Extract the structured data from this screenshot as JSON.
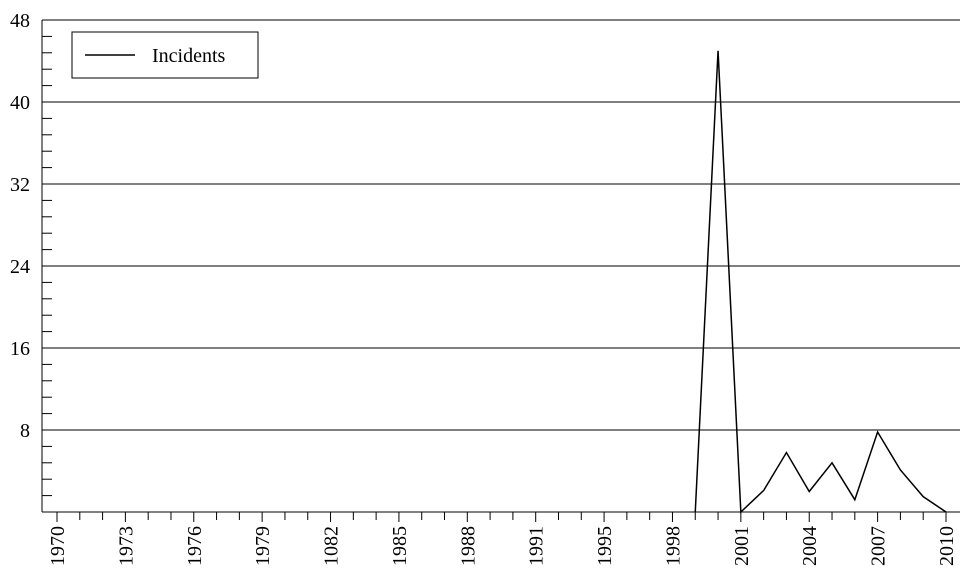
{
  "chart_data": {
    "type": "line",
    "x": [
      28,
      29,
      30,
      31,
      32,
      33,
      34,
      35,
      36,
      37,
      38,
      39
    ],
    "series": [
      {
        "name": "Incidents",
        "color": "#000000",
        "values": [
          0,
          45,
          0,
          2.1,
          5.8,
          2.0,
          4.8,
          1.2,
          7.8,
          4.1,
          1.5,
          0
        ]
      }
    ],
    "xlim": [
      0,
      39
    ],
    "xticks": [
      {
        "value": 0,
        "label": "1970"
      },
      {
        "value": 3,
        "label": "1973"
      },
      {
        "value": 6,
        "label": "1976"
      },
      {
        "value": 9,
        "label": "1979"
      },
      {
        "value": 12,
        "label": "1082"
      },
      {
        "value": 15,
        "label": "1985"
      },
      {
        "value": 18,
        "label": "1988"
      },
      {
        "value": 21,
        "label": "1991"
      },
      {
        "value": 24,
        "label": "1995"
      },
      {
        "value": 27,
        "label": "1998"
      },
      {
        "value": 30,
        "label": "2001"
      },
      {
        "value": 33,
        "label": "2004"
      },
      {
        "value": 36,
        "label": "2007"
      },
      {
        "value": 39,
        "label": "2010"
      }
    ],
    "xminorticks": [
      1,
      2,
      4,
      5,
      7,
      8,
      10,
      11,
      13,
      14,
      16,
      17,
      19,
      20,
      22,
      23,
      25,
      26,
      28,
      29,
      31,
      32,
      34,
      35,
      37,
      38
    ],
    "ylim": [
      0,
      48
    ],
    "yticks": [
      8,
      16,
      24,
      32,
      40,
      48
    ],
    "yminorticks": [
      1.6,
      3.2,
      4.8,
      6.4,
      9.6,
      11.2,
      12.8,
      14.4,
      17.6,
      19.2,
      20.8,
      22.4,
      25.6,
      27.2,
      28.8,
      30.4,
      33.6,
      35.2,
      36.8,
      38.4,
      41.6,
      43.2,
      44.8,
      46.4
    ],
    "grid": true,
    "legend": "upper left"
  }
}
